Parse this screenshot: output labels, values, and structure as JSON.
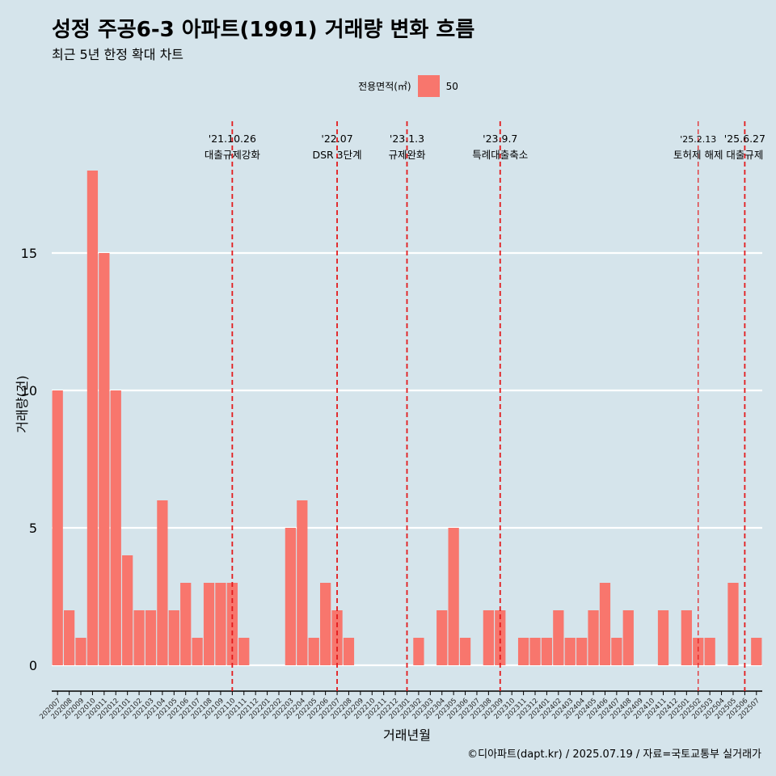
{
  "title": "성정 주공6-3 아파트(1991) 거래량 변화 흐름",
  "subtitle": "최근 5년 한정 확대 차트",
  "caption": "©디아파트(dapt.kr) / 2025.07.19 / 자료=국토교통부 실거래가",
  "legend": {
    "title": "전용면적(㎡)",
    "label": "50",
    "color": "#f8766d"
  },
  "chart_data": {
    "type": "bar",
    "xlabel": "거래년월",
    "ylabel": "거래량(건)",
    "ylim": [
      0,
      18
    ],
    "yticks": [
      0,
      5,
      10,
      15
    ],
    "bar_color": "#f8766d",
    "categories": [
      "202007",
      "202008",
      "202009",
      "202010",
      "202011",
      "202012",
      "202101",
      "202102",
      "202103",
      "202104",
      "202105",
      "202106",
      "202107",
      "202108",
      "202109",
      "202110",
      "202111",
      "202112",
      "202201",
      "202202",
      "202203",
      "202204",
      "202205",
      "202206",
      "202207",
      "202208",
      "202209",
      "202210",
      "202211",
      "202212",
      "202301",
      "202302",
      "202303",
      "202304",
      "202305",
      "202306",
      "202307",
      "202308",
      "202309",
      "202310",
      "202311",
      "202312",
      "202401",
      "202402",
      "202403",
      "202404",
      "202405",
      "202406",
      "202407",
      "202408",
      "202409",
      "202410",
      "202411",
      "202412",
      "202501",
      "202502",
      "202503",
      "202504",
      "202505",
      "202506",
      "202507"
    ],
    "values": [
      10,
      2,
      1,
      18,
      15,
      10,
      4,
      2,
      2,
      6,
      2,
      3,
      1,
      3,
      3,
      3,
      1,
      0,
      0,
      0,
      5,
      6,
      1,
      3,
      2,
      1,
      0,
      0,
      0,
      0,
      0,
      1,
      0,
      2,
      5,
      1,
      0,
      2,
      2,
      0,
      1,
      1,
      1,
      2,
      1,
      1,
      2,
      3,
      1,
      2,
      0,
      0,
      2,
      0,
      2,
      1,
      1,
      0,
      3,
      0,
      1
    ],
    "annotations": [
      {
        "category": "202110",
        "date": "'21.10.26",
        "label": "대출규제강화"
      },
      {
        "category": "202207",
        "date": "'22.07",
        "label": "DSR 3단계"
      },
      {
        "category": "202301",
        "date": "'23.1.3",
        "label": "규제완화"
      },
      {
        "category": "202309",
        "date": "'23.9.7",
        "label": "특례대출축소"
      },
      {
        "category": "202502",
        "date": "'25.2.13",
        "label": "토허제 해제"
      },
      {
        "category": "202506",
        "date": "'25.6.27",
        "label": "대출규제"
      }
    ]
  }
}
